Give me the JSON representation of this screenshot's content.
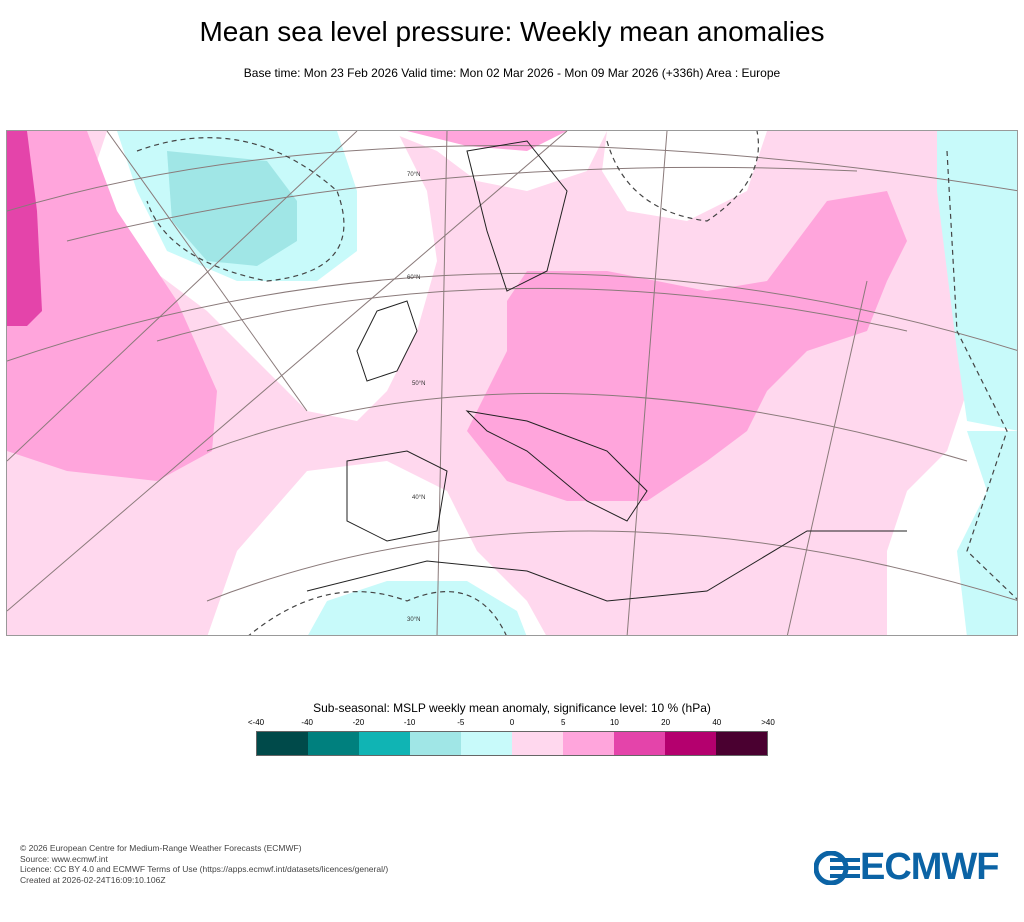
{
  "header": {
    "title": "Mean sea level pressure: Weekly mean anomalies",
    "subtitle": "Base time: Mon 23 Feb 2026 Valid time: Mon 02 Mar 2026 - Mon 09 Mar 2026 (+336h) Area : Europe"
  },
  "map": {
    "latitude_labels": [
      "70°N",
      "60°N",
      "50°N",
      "40°N",
      "30°N"
    ]
  },
  "legend": {
    "title": "Sub-seasonal: MSLP weekly mean anomaly, significance level: 10 % (hPa)",
    "ticks": [
      "<-40",
      "-40",
      "-20",
      "-10",
      "-5",
      "0",
      "5",
      "10",
      "20",
      "40",
      ">40"
    ],
    "colors": [
      "#004a4a",
      "#00807e",
      "#10b4b4",
      "#a0e6e6",
      "#c8fafa",
      "#ffd8ee",
      "#ffa5dc",
      "#e444aa",
      "#b4006e",
      "#4a0030"
    ]
  },
  "footer": {
    "lines": [
      "© 2026 European Centre for Medium-Range Weather Forecasts (ECMWF)",
      "Source: www.ecmwf.int",
      "Licence: CC BY 4.0 and ECMWF Terms of Use (https://apps.ecmwf.int/datasets/licences/general/)",
      "Created at 2026-02-24T16:09:10.106Z"
    ],
    "logo": "ECMWF"
  }
}
